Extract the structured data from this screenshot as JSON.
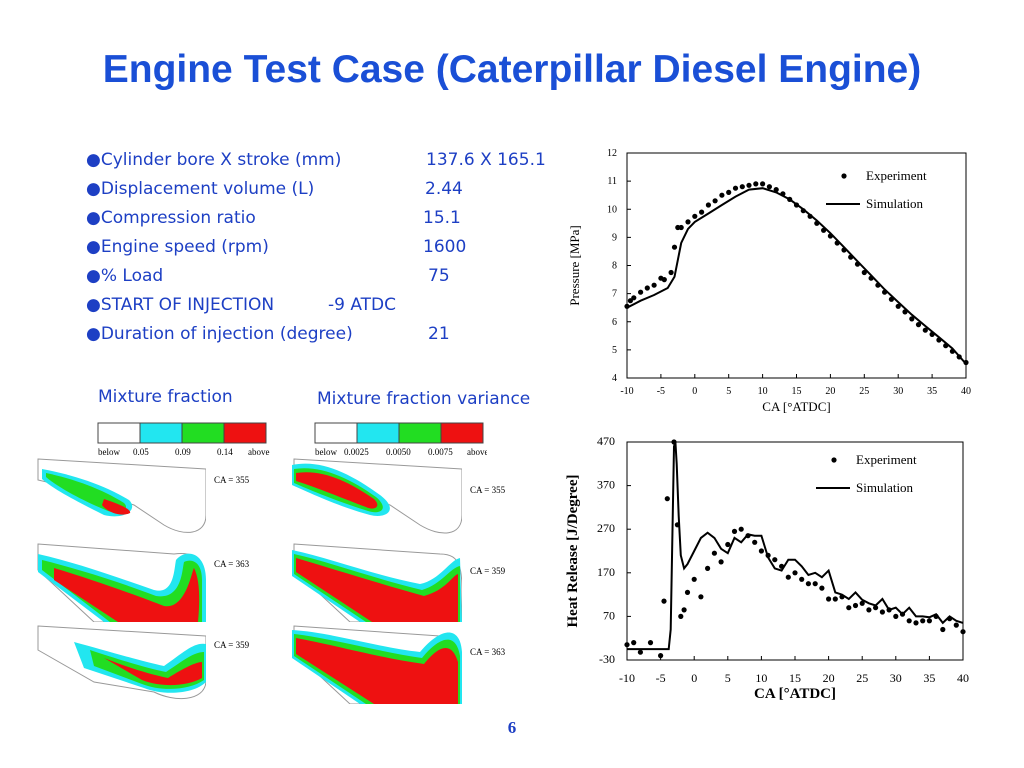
{
  "slide": {
    "title": "Engine Test Case (Caterpillar Diesel Engine)",
    "page_number": "6",
    "colors": {
      "title": "#1a4fd6",
      "text": "#1d3fc4",
      "red": "#ee1111",
      "green": "#22dd22",
      "cyan": "#22e6f0"
    }
  },
  "specs": [
    {
      "label": "●Cylinder bore X stroke (mm)",
      "value": "137.6 X 165.1"
    },
    {
      "label": "●Displacement volume (L)",
      "value": "2.44"
    },
    {
      "label": "●Compression ratio",
      "value": "15.1"
    },
    {
      "label": "●Engine speed (rpm)",
      "value": "1600"
    },
    {
      "label": "●% Load",
      "value": "75"
    },
    {
      "label": "●START OF INJECTION",
      "value": "-9 ATDC"
    },
    {
      "label": "●Duration of injection (degree)",
      "value": "21"
    }
  ],
  "mixture_fraction": {
    "caption": "Mixture fraction",
    "legend": [
      "below",
      "0.05",
      "0.09",
      "0.14",
      "above"
    ],
    "panels": [
      "CA = 355",
      "CA = 363",
      "CA = 359"
    ]
  },
  "mixture_variance": {
    "caption": "Mixture fraction variance",
    "legend": [
      "below",
      "0.0025",
      "0.0050",
      "0.0075",
      "above"
    ],
    "panels": [
      "CA = 355",
      "CA = 359",
      "CA = 363"
    ]
  },
  "chart_data": [
    {
      "type": "line",
      "title": "",
      "xlabel": "CA  [°ATDC]",
      "ylabel": "Pressure [MPa]",
      "xlim": [
        -10,
        40
      ],
      "ylim": [
        4,
        12
      ],
      "xticks": [
        "-10",
        "-5",
        "0",
        "5",
        "10",
        "15",
        "20",
        "25",
        "30",
        "35",
        "40"
      ],
      "yticks": [
        "4",
        "5",
        "6",
        "7",
        "8",
        "9",
        "10",
        "11",
        "12"
      ],
      "legend": [
        "Experiment",
        "Simulation"
      ],
      "legend_position": "top-right",
      "series": [
        {
          "name": "Experiment",
          "style": "dots",
          "x": [
            -10,
            -9.5,
            -9,
            -8,
            -7,
            -6,
            -5,
            -4.5,
            -3.5,
            -3,
            -2.5,
            -2,
            -1,
            0,
            1,
            2,
            3,
            4,
            5,
            6,
            7,
            8,
            9,
            10,
            11,
            12,
            13,
            14,
            15,
            16,
            17,
            18,
            19,
            20,
            21,
            22,
            23,
            24,
            25,
            26,
            27,
            28,
            29,
            30,
            31,
            32,
            33,
            34,
            35,
            36,
            37,
            38,
            39,
            40
          ],
          "y": [
            6.55,
            6.75,
            6.85,
            7.05,
            7.2,
            7.3,
            7.55,
            7.5,
            7.75,
            8.65,
            9.35,
            9.35,
            9.55,
            9.75,
            9.9,
            10.15,
            10.3,
            10.5,
            10.6,
            10.75,
            10.8,
            10.85,
            10.9,
            10.9,
            10.8,
            10.7,
            10.55,
            10.35,
            10.15,
            9.95,
            9.75,
            9.5,
            9.25,
            9.05,
            8.8,
            8.55,
            8.3,
            8.05,
            7.75,
            7.55,
            7.3,
            7.05,
            6.8,
            6.55,
            6.35,
            6.1,
            5.9,
            5.7,
            5.55,
            5.35,
            5.15,
            4.95,
            4.75,
            4.55
          ]
        },
        {
          "name": "Simulation",
          "style": "line",
          "x": [
            -10,
            -8,
            -6,
            -4,
            -3,
            -2,
            -1,
            0,
            2,
            4,
            6,
            8,
            10,
            12,
            14,
            16,
            18,
            20,
            22,
            24,
            26,
            28,
            30,
            32,
            34,
            36,
            38,
            40
          ],
          "y": [
            6.5,
            6.75,
            6.95,
            7.2,
            7.6,
            8.8,
            9.3,
            9.55,
            9.85,
            10.15,
            10.45,
            10.7,
            10.75,
            10.6,
            10.35,
            10.0,
            9.6,
            9.15,
            8.65,
            8.15,
            7.65,
            7.15,
            6.7,
            6.25,
            5.85,
            5.45,
            5.05,
            4.5
          ]
        }
      ]
    },
    {
      "type": "line",
      "title": "",
      "xlabel": "CA  [°ATDC]",
      "ylabel": "Heat Release [J/Degree]",
      "xlim": [
        -10,
        40
      ],
      "ylim": [
        -30,
        470
      ],
      "xticks": [
        "-10",
        "-5",
        "0",
        "5",
        "10",
        "15",
        "20",
        "25",
        "30",
        "35",
        "40"
      ],
      "yticks": [
        "-30",
        "70",
        "170",
        "270",
        "370",
        "470"
      ],
      "legend": [
        "Experiment",
        "Simulation"
      ],
      "legend_position": "top-right",
      "series": [
        {
          "name": "Experiment",
          "style": "dots",
          "x": [
            -10,
            -9,
            -8,
            -6.5,
            -5,
            -4.5,
            -4,
            -3,
            -2.5,
            -2,
            -1.5,
            -1,
            0,
            1,
            2,
            3,
            4,
            5,
            6,
            7,
            8,
            9,
            10,
            11,
            12,
            13,
            14,
            15,
            16,
            17,
            18,
            19,
            20,
            21,
            22,
            23,
            24,
            25,
            26,
            27,
            28,
            29,
            30,
            31,
            32,
            33,
            34,
            35,
            36,
            37,
            38,
            39,
            40
          ],
          "y": [
            5,
            10,
            -12,
            10,
            -20,
            105,
            340,
            470,
            280,
            70,
            85,
            125,
            155,
            115,
            180,
            215,
            195,
            235,
            265,
            270,
            255,
            240,
            220,
            210,
            200,
            185,
            160,
            170,
            155,
            145,
            145,
            135,
            110,
            110,
            115,
            90,
            95,
            100,
            85,
            90,
            80,
            85,
            70,
            75,
            60,
            55,
            60,
            60,
            70,
            40,
            65,
            50,
            35
          ]
        },
        {
          "name": "Simulation",
          "style": "line",
          "x": [
            -10,
            -6,
            -3.8,
            -3.5,
            -3,
            -2.8,
            -2.6,
            -2.3,
            -2,
            -1.5,
            -1,
            0,
            1,
            2,
            3,
            4,
            5,
            6,
            7,
            8,
            9,
            10,
            11,
            12,
            13,
            14,
            15,
            16,
            17,
            18,
            19,
            20,
            21,
            22,
            23,
            24,
            25,
            26,
            27,
            28,
            29,
            30,
            31,
            32,
            33,
            34,
            35,
            36,
            37,
            38,
            39,
            40
          ],
          "y": [
            -5,
            -5,
            -5,
            40,
            460,
            470,
            420,
            300,
            210,
            180,
            190,
            220,
            250,
            262,
            250,
            225,
            215,
            250,
            240,
            258,
            255,
            255,
            205,
            180,
            175,
            200,
            200,
            185,
            165,
            170,
            160,
            175,
            125,
            120,
            110,
            125,
            108,
            100,
            95,
            110,
            85,
            90,
            75,
            90,
            70,
            70,
            68,
            75,
            55,
            70,
            60,
            55
          ]
        }
      ]
    }
  ]
}
